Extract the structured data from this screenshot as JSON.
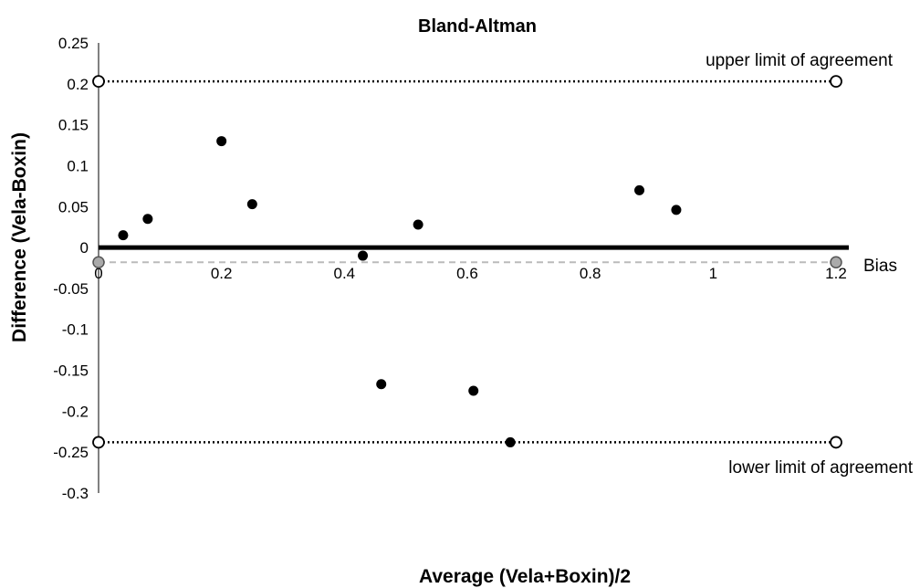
{
  "chart_data": {
    "type": "scatter",
    "title": "Bland-Altman",
    "xlabel": "Average (Vela+Boxin)/2",
    "ylabel": "Difference (Vela-Boxin)",
    "xlim": [
      0,
      1.2
    ],
    "ylim": [
      -0.3,
      0.25
    ],
    "x_ticks": [
      "0",
      "0.2",
      "0.4",
      "0.6",
      "0.8",
      "1",
      "1.2"
    ],
    "y_ticks": [
      "0.25",
      "0.2",
      "0.15",
      "0.1",
      "0.05",
      "0",
      "-0.05",
      "-0.1",
      "-0.15",
      "-0.2",
      "-0.25",
      "-0.3"
    ],
    "grid": false,
    "points": {
      "x": [
        0.04,
        0.08,
        0.2,
        0.25,
        0.43,
        0.46,
        0.52,
        0.61,
        0.67,
        0.88,
        0.94
      ],
      "y": [
        0.015,
        0.035,
        0.13,
        0.053,
        -0.01,
        -0.167,
        0.028,
        -0.175,
        -0.238,
        0.07,
        0.046
      ]
    },
    "reference_lines": {
      "upper": {
        "y": 0.203,
        "label": "upper limit of agreement"
      },
      "bias": {
        "y": -0.018,
        "label": "Bias"
      },
      "lower": {
        "y": -0.238,
        "label": "lower limit of agreement"
      },
      "zero": {
        "y": 0
      }
    },
    "colors": {
      "points": "#000000",
      "bias_line": "#bbbbbb",
      "bias_marker": "#aaaaaa"
    }
  }
}
